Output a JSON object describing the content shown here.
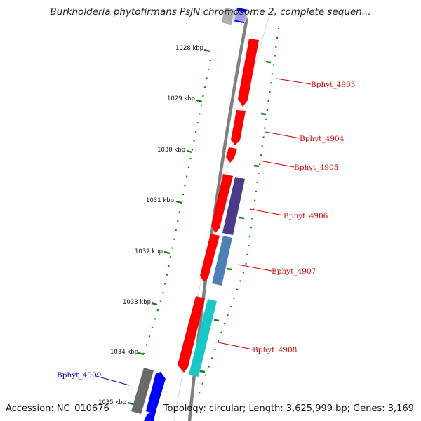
{
  "title": "Burkholderia phytofirmans PsJN chromosome 2, complete sequen...",
  "footer": {
    "accession": "Accession: NC_010676",
    "topology": "Topology: circular; Length: 3,625,999 bp; Genes: 3,169"
  },
  "ruler": [
    {
      "label": "1028 kbp"
    },
    {
      "label": "1029 kbp"
    },
    {
      "label": "1030 kbp"
    },
    {
      "label": "1031 kbp"
    },
    {
      "label": "1032 kbp"
    },
    {
      "label": "1033 kbp"
    },
    {
      "label": "1034 kbp"
    },
    {
      "label": "1035 kbp"
    }
  ],
  "gene_labels": [
    {
      "name": "Bphyt_4903",
      "color": "#cc0000"
    },
    {
      "name": "Bphyt_4904",
      "color": "#cc0000"
    },
    {
      "name": "Bphyt_4905",
      "color": "#cc0000"
    },
    {
      "name": "Bphyt_4906",
      "color": "#cc0000"
    },
    {
      "name": "Bphyt_4907",
      "color": "#cc0000"
    },
    {
      "name": "Bphyt_4908",
      "color": "#cc0000"
    },
    {
      "name": "Bphyt_4909",
      "color": "#0000cc"
    }
  ],
  "colors": {
    "backbone": "#7a7a7a",
    "cds_red": "#ff0000",
    "cds_blue": "#0000ff",
    "cds_purple": "#4b3a8a",
    "cds_steel": "#4f7fb8",
    "cds_cyan": "#19c7c7",
    "cds_gray": "#6a6a6a",
    "tick_green": "#1a7a1a"
  }
}
